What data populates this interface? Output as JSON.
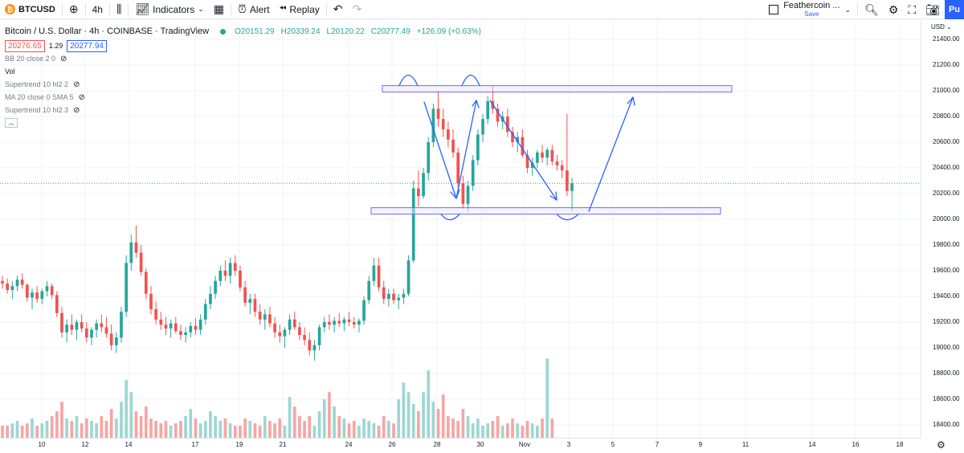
{
  "toolbar": {
    "symbol": "BTCUSD",
    "interval": "4h",
    "indicators_label": "Indicators",
    "alert_label": "Alert",
    "replay_label": "Replay",
    "layout_name": "Feathercoin ...",
    "layout_save": "Save",
    "publish_label": "Pu"
  },
  "legend": {
    "title": "Bitcoin / U.S. Dollar · 4h · COINBASE · TradingView",
    "open": "O20151.29",
    "high": "H20339.24",
    "low": "L20120.22",
    "close": "C20277.49",
    "change": "+126.09 (+0.63%)",
    "bid": "20276.65",
    "spread": "1.29",
    "ask": "20277.94",
    "indicators": [
      "BB 20 close 2 0",
      "Vol",
      "Supertrend 10 hl2 2",
      "MA 20 close 0 SMA 5",
      "Supertrend 10 hl2 3"
    ]
  },
  "axis": {
    "currency": "USD",
    "price_labels": [
      "21400.00",
      "21200.00",
      "21000.00",
      "20800.00",
      "20600.00",
      "20400.00",
      "20200.00",
      "20000.00",
      "19800.00",
      "19600.00",
      "19400.00",
      "19200.00",
      "19000.00",
      "18800.00",
      "18600.00",
      "18400.00"
    ],
    "time_labels": [
      "10",
      "12",
      "14",
      "17",
      "19",
      "21",
      "24",
      "26",
      "28",
      "30",
      "Nov",
      "3",
      "5",
      "7",
      "9",
      "11",
      "14",
      "16",
      "18"
    ]
  },
  "colors": {
    "up": "#26a69a",
    "down": "#ef5350",
    "vol_up": "#9dd7d2",
    "vol_down": "#f5a6a4",
    "drawing": "#2962ff",
    "box_border": "#7b68ee",
    "box_fill": "#e8e6fb"
  },
  "chart_data": {
    "type": "candlestick",
    "ylim": [
      18300,
      21550
    ],
    "support_zone": [
      20040,
      20090
    ],
    "resistance_zone": [
      20990,
      21040
    ],
    "candles": [
      [
        19520,
        19560,
        19460,
        19500
      ],
      [
        19500,
        19540,
        19420,
        19450
      ],
      [
        19450,
        19520,
        19380,
        19480
      ],
      [
        19480,
        19560,
        19440,
        19530
      ],
      [
        19530,
        19580,
        19460,
        19490
      ],
      [
        19490,
        19500,
        19360,
        19390
      ],
      [
        19390,
        19460,
        19300,
        19430
      ],
      [
        19430,
        19480,
        19350,
        19380
      ],
      [
        19380,
        19460,
        19340,
        19440
      ],
      [
        19440,
        19520,
        19400,
        19480
      ],
      [
        19480,
        19500,
        19380,
        19410
      ],
      [
        19410,
        19440,
        19240,
        19270
      ],
      [
        19270,
        19320,
        19080,
        19120
      ],
      [
        19120,
        19220,
        19040,
        19180
      ],
      [
        19180,
        19260,
        19100,
        19140
      ],
      [
        19140,
        19220,
        19060,
        19200
      ],
      [
        19200,
        19260,
        19120,
        19150
      ],
      [
        19150,
        19200,
        19040,
        19080
      ],
      [
        19080,
        19160,
        19020,
        19140
      ],
      [
        19140,
        19220,
        19080,
        19190
      ],
      [
        19190,
        19260,
        19120,
        19160
      ],
      [
        19160,
        19240,
        19080,
        19110
      ],
      [
        19110,
        19180,
        18980,
        19020
      ],
      [
        19020,
        19120,
        18960,
        19080
      ],
      [
        19080,
        19320,
        19040,
        19280
      ],
      [
        19280,
        19720,
        19240,
        19660
      ],
      [
        19660,
        19880,
        19600,
        19820
      ],
      [
        19820,
        19950,
        19700,
        19740
      ],
      [
        19740,
        19800,
        19560,
        19590
      ],
      [
        19590,
        19620,
        19380,
        19420
      ],
      [
        19420,
        19480,
        19260,
        19300
      ],
      [
        19300,
        19360,
        19180,
        19220
      ],
      [
        19220,
        19280,
        19140,
        19180
      ],
      [
        19180,
        19240,
        19100,
        19150
      ],
      [
        19150,
        19220,
        19080,
        19190
      ],
      [
        19190,
        19240,
        19110,
        19130
      ],
      [
        19130,
        19180,
        19060,
        19100
      ],
      [
        19100,
        19160,
        19040,
        19120
      ],
      [
        19120,
        19200,
        19080,
        19170
      ],
      [
        19170,
        19230,
        19100,
        19140
      ],
      [
        19140,
        19260,
        19100,
        19220
      ],
      [
        19220,
        19380,
        19180,
        19340
      ],
      [
        19340,
        19480,
        19300,
        19420
      ],
      [
        19420,
        19560,
        19380,
        19520
      ],
      [
        19520,
        19640,
        19480,
        19600
      ],
      [
        19600,
        19680,
        19520,
        19560
      ],
      [
        19560,
        19700,
        19500,
        19660
      ],
      [
        19660,
        19720,
        19560,
        19600
      ],
      [
        19600,
        19640,
        19440,
        19470
      ],
      [
        19470,
        19520,
        19320,
        19350
      ],
      [
        19350,
        19420,
        19260,
        19380
      ],
      [
        19380,
        19420,
        19240,
        19280
      ],
      [
        19280,
        19340,
        19180,
        19220
      ],
      [
        19220,
        19300,
        19140,
        19260
      ],
      [
        19260,
        19320,
        19160,
        19190
      ],
      [
        19190,
        19240,
        19080,
        19120
      ],
      [
        19120,
        19180,
        19040,
        19090
      ],
      [
        19090,
        19160,
        19000,
        19140
      ],
      [
        19140,
        19260,
        19100,
        19220
      ],
      [
        19220,
        19280,
        19140,
        19160
      ],
      [
        19160,
        19200,
        19060,
        19100
      ],
      [
        19100,
        19160,
        19020,
        19060
      ],
      [
        19060,
        19120,
        18940,
        18980
      ],
      [
        18980,
        19060,
        18900,
        19020
      ],
      [
        19020,
        19180,
        18980,
        19160
      ],
      [
        19160,
        19240,
        19120,
        19200
      ],
      [
        19200,
        19260,
        19140,
        19180
      ],
      [
        19180,
        19240,
        19120,
        19210
      ],
      [
        19210,
        19270,
        19160,
        19190
      ],
      [
        19190,
        19240,
        19130,
        19220
      ],
      [
        19220,
        19280,
        19170,
        19200
      ],
      [
        19200,
        19240,
        19150,
        19180
      ],
      [
        19180,
        19230,
        19120,
        19210
      ],
      [
        19210,
        19400,
        19180,
        19370
      ],
      [
        19370,
        19560,
        19340,
        19520
      ],
      [
        19520,
        19700,
        19480,
        19640
      ],
      [
        19640,
        19700,
        19440,
        19470
      ],
      [
        19470,
        19520,
        19340,
        19380
      ],
      [
        19380,
        19460,
        19320,
        19420
      ],
      [
        19420,
        19460,
        19340,
        19370
      ],
      [
        19370,
        19420,
        19300,
        19390
      ],
      [
        19390,
        19460,
        19340,
        19420
      ],
      [
        19420,
        19720,
        19400,
        19680
      ],
      [
        19680,
        20300,
        19660,
        20240
      ],
      [
        20240,
        20380,
        20100,
        20180
      ],
      [
        20180,
        20400,
        20160,
        20360
      ],
      [
        20360,
        20640,
        20300,
        20600
      ],
      [
        20600,
        20900,
        20560,
        20860
      ],
      [
        20860,
        21000,
        20720,
        20780
      ],
      [
        20780,
        20860,
        20640,
        20700
      ],
      [
        20700,
        20760,
        20560,
        20620
      ],
      [
        20620,
        20700,
        20480,
        20520
      ],
      [
        20520,
        20560,
        20240,
        20280
      ],
      [
        20280,
        20340,
        20080,
        20120
      ],
      [
        20120,
        20300,
        20060,
        20260
      ],
      [
        20260,
        20500,
        20220,
        20460
      ],
      [
        20460,
        20700,
        20420,
        20660
      ],
      [
        20660,
        20820,
        20600,
        20780
      ],
      [
        20780,
        20960,
        20740,
        20920
      ],
      [
        20920,
        21040,
        20820,
        20860
      ],
      [
        20860,
        20900,
        20720,
        20760
      ],
      [
        20760,
        20840,
        20700,
        20800
      ],
      [
        20800,
        20860,
        20640,
        20680
      ],
      [
        20680,
        20720,
        20560,
        20600
      ],
      [
        20600,
        20680,
        20520,
        20640
      ],
      [
        20640,
        20700,
        20480,
        20500
      ],
      [
        20500,
        20540,
        20360,
        20400
      ],
      [
        20400,
        20480,
        20340,
        20440
      ],
      [
        20440,
        20540,
        20400,
        20520
      ],
      [
        20520,
        20580,
        20440,
        20480
      ],
      [
        20480,
        20560,
        20420,
        20540
      ],
      [
        20540,
        20580,
        20420,
        20450
      ],
      [
        20450,
        20500,
        20380,
        20420
      ],
      [
        20420,
        20460,
        20320,
        20380
      ],
      [
        20380,
        20820,
        20180,
        20220
      ],
      [
        20220,
        20320,
        20060,
        20280
      ]
    ],
    "volumes": [
      0.05,
      0.05,
      0.06,
      0.07,
      0.05,
      0.06,
      0.08,
      0.05,
      0.06,
      0.07,
      0.09,
      0.11,
      0.15,
      0.08,
      0.07,
      0.09,
      0.06,
      0.08,
      0.07,
      0.06,
      0.09,
      0.07,
      0.12,
      0.08,
      0.15,
      0.24,
      0.19,
      0.11,
      0.09,
      0.13,
      0.08,
      0.07,
      0.06,
      0.07,
      0.05,
      0.06,
      0.07,
      0.09,
      0.12,
      0.08,
      0.06,
      0.07,
      0.11,
      0.09,
      0.07,
      0.08,
      0.06,
      0.05,
      0.05,
      0.08,
      0.07,
      0.06,
      0.05,
      0.09,
      0.07,
      0.06,
      0.08,
      0.05,
      0.17,
      0.13,
      0.09,
      0.07,
      0.09,
      0.05,
      0.11,
      0.16,
      0.19,
      0.13,
      0.09,
      0.08,
      0.06,
      0.07,
      0.05,
      0.08,
      0.07,
      0.06,
      0.05,
      0.09,
      0.07,
      0.06,
      0.16,
      0.23,
      0.19,
      0.14,
      0.11,
      0.19,
      0.28,
      0.15,
      0.12,
      0.18,
      0.09,
      0.08,
      0.07,
      0.12,
      0.09,
      0.06,
      0.08,
      0.05,
      0.06,
      0.07,
      0.09,
      0.05,
      0.06,
      0.08,
      0.06,
      0.05,
      0.07,
      0.06,
      0.05,
      0.08,
      0.33,
      0.08
    ]
  }
}
